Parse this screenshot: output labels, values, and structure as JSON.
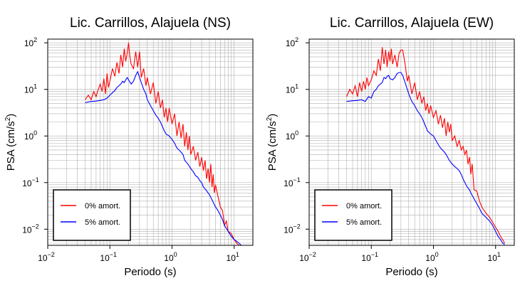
{
  "chart_data": [
    {
      "type": "line",
      "title": "Lic. Carrillos, Alajuela (NS)",
      "xlabel": "Periodo (s)",
      "ylabel_main": "PSA (cm/s",
      "ylabel_sup": "2",
      "ylabel_close": ")",
      "xscale": "log",
      "yscale": "log",
      "xlim": [
        0.01,
        20
      ],
      "ylim": [
        0.0045,
        120
      ],
      "grid": true,
      "legend_position": "bottom-left",
      "xticks": [
        {
          "base": "10",
          "exp": "−2",
          "v": 0.01
        },
        {
          "base": "10",
          "exp": "−1",
          "v": 0.1
        },
        {
          "base": "10",
          "exp": "0",
          "v": 1
        },
        {
          "base": "10",
          "exp": "1",
          "v": 10
        }
      ],
      "yticks": [
        {
          "base": "10",
          "exp": "−2",
          "v": 0.01
        },
        {
          "base": "10",
          "exp": "−1",
          "v": 0.1
        },
        {
          "base": "10",
          "exp": "0",
          "v": 1
        },
        {
          "base": "10",
          "exp": "1",
          "v": 10
        },
        {
          "base": "10",
          "exp": "2",
          "v": 100
        }
      ],
      "series": [
        {
          "name": "0% amort.",
          "color": "#ff0000",
          "x": [
            0.04,
            0.045,
            0.05,
            0.055,
            0.06,
            0.065,
            0.07,
            0.075,
            0.08,
            0.085,
            0.09,
            0.095,
            0.1,
            0.11,
            0.12,
            0.13,
            0.14,
            0.15,
            0.16,
            0.17,
            0.18,
            0.19,
            0.2,
            0.21,
            0.22,
            0.24,
            0.26,
            0.28,
            0.3,
            0.32,
            0.35,
            0.38,
            0.4,
            0.45,
            0.5,
            0.55,
            0.6,
            0.65,
            0.7,
            0.75,
            0.8,
            0.85,
            0.9,
            1.0,
            1.1,
            1.2,
            1.3,
            1.4,
            1.5,
            1.6,
            1.7,
            1.8,
            1.9,
            2.0,
            2.2,
            2.4,
            2.6,
            2.8,
            3.0,
            3.2,
            3.4,
            3.6,
            3.8,
            4.0,
            4.2,
            4.4,
            4.6,
            4.8,
            5.0,
            5.5,
            6.0,
            6.5,
            7.0,
            7.5,
            8.0,
            9.0,
            10.0,
            11.0,
            12.0,
            13.0,
            14.0
          ],
          "y": [
            6.0,
            7.5,
            6.0,
            9.0,
            7.0,
            10.0,
            13.0,
            9.0,
            17.0,
            8.0,
            22.0,
            11.0,
            15.0,
            28.0,
            19.0,
            38.0,
            22.0,
            55.0,
            30.0,
            75.0,
            40.0,
            60.0,
            100.0,
            50.0,
            35.0,
            28.0,
            65.0,
            30.0,
            65.0,
            18.0,
            28.0,
            12.0,
            18.0,
            8.0,
            14.0,
            5.0,
            9.0,
            4.0,
            6.0,
            2.5,
            4.0,
            2.0,
            4.0,
            1.8,
            3.0,
            1.0,
            2.0,
            0.9,
            1.8,
            0.6,
            1.2,
            0.5,
            1.0,
            0.4,
            0.6,
            0.3,
            0.45,
            0.22,
            0.35,
            0.18,
            0.3,
            0.12,
            0.2,
            0.1,
            0.25,
            0.08,
            0.15,
            0.06,
            0.09,
            0.05,
            0.03,
            0.025,
            0.012,
            0.015,
            0.009,
            0.008,
            0.006,
            0.005,
            0.0045,
            0.0045,
            0.0045
          ]
        },
        {
          "name": "5% amort.",
          "color": "#0000ff",
          "x": [
            0.04,
            0.05,
            0.06,
            0.07,
            0.08,
            0.09,
            0.1,
            0.11,
            0.12,
            0.13,
            0.14,
            0.15,
            0.16,
            0.17,
            0.18,
            0.19,
            0.2,
            0.22,
            0.24,
            0.26,
            0.28,
            0.3,
            0.32,
            0.35,
            0.38,
            0.4,
            0.45,
            0.5,
            0.55,
            0.6,
            0.65,
            0.7,
            0.75,
            0.8,
            0.9,
            1.0,
            1.1,
            1.2,
            1.3,
            1.4,
            1.5,
            1.6,
            1.8,
            2.0,
            2.2,
            2.4,
            2.6,
            2.8,
            3.0,
            3.2,
            3.5,
            3.8,
            4.0,
            4.5,
            5.0,
            5.5,
            6.0,
            6.5,
            7.0,
            8.0,
            9.0,
            10.0,
            11.0,
            12.0,
            13.0,
            14.0
          ],
          "y": [
            5.2,
            5.5,
            5.6,
            5.8,
            6.0,
            6.5,
            7.5,
            8.5,
            9.5,
            11.0,
            12.0,
            13.0,
            15.0,
            14.0,
            16.0,
            18.0,
            16.0,
            13.0,
            15.0,
            20.0,
            24.0,
            18.0,
            14.0,
            10.0,
            8.0,
            6.0,
            4.5,
            3.5,
            2.8,
            2.4,
            2.0,
            1.6,
            1.3,
            1.1,
            1.0,
            0.85,
            0.7,
            0.55,
            0.5,
            0.45,
            0.4,
            0.3,
            0.25,
            0.2,
            0.17,
            0.14,
            0.13,
            0.11,
            0.1,
            0.08,
            0.07,
            0.06,
            0.055,
            0.04,
            0.03,
            0.025,
            0.02,
            0.016,
            0.012,
            0.009,
            0.007,
            0.006,
            0.0055,
            0.005,
            0.0045,
            0.0045
          ]
        }
      ]
    },
    {
      "type": "line",
      "title": "Lic. Carrillos, Alajuela (EW)",
      "xlabel": "Periodo (s)",
      "ylabel_main": "PSA (cm/s",
      "ylabel_sup": "2",
      "ylabel_close": ")",
      "xscale": "log",
      "yscale": "log",
      "xlim": [
        0.01,
        20
      ],
      "ylim": [
        0.0045,
        120
      ],
      "grid": true,
      "legend_position": "bottom-left",
      "xticks": [
        {
          "base": "10",
          "exp": "−2",
          "v": 0.01
        },
        {
          "base": "10",
          "exp": "−1",
          "v": 0.1
        },
        {
          "base": "10",
          "exp": "0",
          "v": 1
        },
        {
          "base": "10",
          "exp": "1",
          "v": 10
        }
      ],
      "yticks": [
        {
          "base": "10",
          "exp": "−2",
          "v": 0.01
        },
        {
          "base": "10",
          "exp": "−1",
          "v": 0.1
        },
        {
          "base": "10",
          "exp": "0",
          "v": 1
        },
        {
          "base": "10",
          "exp": "1",
          "v": 10
        },
        {
          "base": "10",
          "exp": "2",
          "v": 100
        }
      ],
      "series": [
        {
          "name": "0% amort.",
          "color": "#ff0000",
          "x": [
            0.04,
            0.045,
            0.05,
            0.055,
            0.06,
            0.065,
            0.07,
            0.075,
            0.08,
            0.085,
            0.09,
            0.095,
            0.1,
            0.11,
            0.12,
            0.13,
            0.14,
            0.15,
            0.16,
            0.17,
            0.18,
            0.19,
            0.2,
            0.21,
            0.22,
            0.24,
            0.26,
            0.28,
            0.3,
            0.32,
            0.35,
            0.38,
            0.4,
            0.45,
            0.5,
            0.55,
            0.6,
            0.65,
            0.7,
            0.75,
            0.8,
            0.85,
            0.9,
            1.0,
            1.1,
            1.2,
            1.3,
            1.4,
            1.5,
            1.6,
            1.7,
            1.8,
            1.9,
            2.0,
            2.2,
            2.4,
            2.6,
            2.8,
            3.0,
            3.2,
            3.4,
            3.6,
            3.8,
            4.0,
            4.2,
            4.5,
            5.0,
            5.5,
            6.0,
            7.0,
            8.0,
            9.0,
            10.0,
            11.0,
            12.0,
            13.0,
            14.0
          ],
          "y": [
            7.0,
            10.0,
            8.0,
            12.0,
            7.0,
            14.0,
            9.0,
            15.0,
            10.0,
            18.0,
            12.0,
            14.0,
            16.0,
            25.0,
            20.0,
            45.0,
            25.0,
            80.0,
            35.0,
            70.0,
            30.0,
            65.0,
            40.0,
            75.0,
            35.0,
            55.0,
            30.0,
            60.0,
            70.0,
            70.0,
            35.0,
            15.0,
            20.0,
            8.0,
            14.0,
            6.0,
            9.0,
            5.0,
            7.0,
            3.5,
            5.0,
            3.0,
            4.5,
            2.5,
            3.5,
            1.8,
            2.8,
            1.5,
            2.4,
            1.0,
            2.0,
            1.2,
            1.8,
            0.8,
            1.0,
            0.6,
            0.8,
            0.5,
            0.6,
            0.4,
            0.5,
            0.25,
            0.35,
            0.15,
            0.25,
            0.07,
            0.065,
            0.04,
            0.03,
            0.022,
            0.018,
            0.014,
            0.011,
            0.009,
            0.007,
            0.006,
            0.005
          ]
        },
        {
          "name": "5% amort.",
          "color": "#0000ff",
          "x": [
            0.04,
            0.05,
            0.06,
            0.07,
            0.08,
            0.09,
            0.1,
            0.11,
            0.12,
            0.13,
            0.14,
            0.15,
            0.16,
            0.17,
            0.18,
            0.19,
            0.2,
            0.22,
            0.24,
            0.26,
            0.28,
            0.3,
            0.32,
            0.35,
            0.38,
            0.4,
            0.45,
            0.5,
            0.55,
            0.6,
            0.65,
            0.7,
            0.75,
            0.8,
            0.9,
            1.0,
            1.1,
            1.2,
            1.3,
            1.4,
            1.5,
            1.6,
            1.8,
            2.0,
            2.2,
            2.4,
            2.6,
            2.8,
            3.0,
            3.2,
            3.5,
            3.8,
            4.0,
            4.5,
            5.0,
            5.5,
            6.0,
            7.0,
            8.0,
            9.0,
            10.0,
            11.0,
            12.0,
            13.0,
            14.0
          ],
          "y": [
            5.5,
            5.7,
            5.8,
            6.0,
            5.5,
            7.0,
            6.5,
            9.0,
            10.0,
            12.0,
            13.0,
            14.0,
            18.0,
            17.0,
            19.0,
            20.0,
            17.0,
            16.0,
            18.0,
            22.0,
            23.0,
            23.0,
            20.0,
            14.0,
            10.0,
            8.0,
            5.5,
            4.5,
            3.5,
            3.0,
            2.5,
            2.0,
            1.6,
            1.3,
            1.1,
            1.0,
            0.8,
            0.65,
            0.55,
            0.5,
            0.45,
            0.4,
            0.3,
            0.25,
            0.22,
            0.2,
            0.18,
            0.15,
            0.12,
            0.1,
            0.08,
            0.07,
            0.06,
            0.045,
            0.035,
            0.028,
            0.022,
            0.018,
            0.015,
            0.012,
            0.009,
            0.007,
            0.006,
            0.005,
            0.0047
          ]
        }
      ]
    }
  ]
}
